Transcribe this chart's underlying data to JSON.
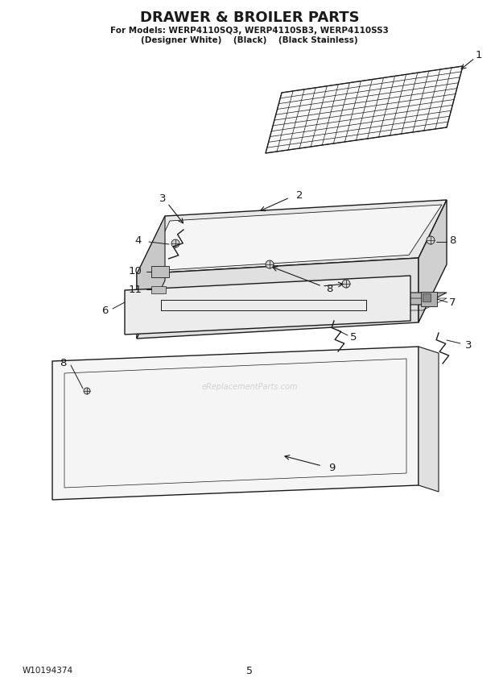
{
  "title": "DRAWER & BROILER PARTS",
  "subtitle1": "For Models: WERP4110SQ3, WERP4110SB3, WERP4110SS3",
  "subtitle2": "(Designer White)    (Black)    (Black Stainless)",
  "footer_left": "W10194374",
  "footer_center": "5",
  "bg_color": "#ffffff",
  "line_color": "#1a1a1a",
  "watermark": "eReplacementParts.com"
}
